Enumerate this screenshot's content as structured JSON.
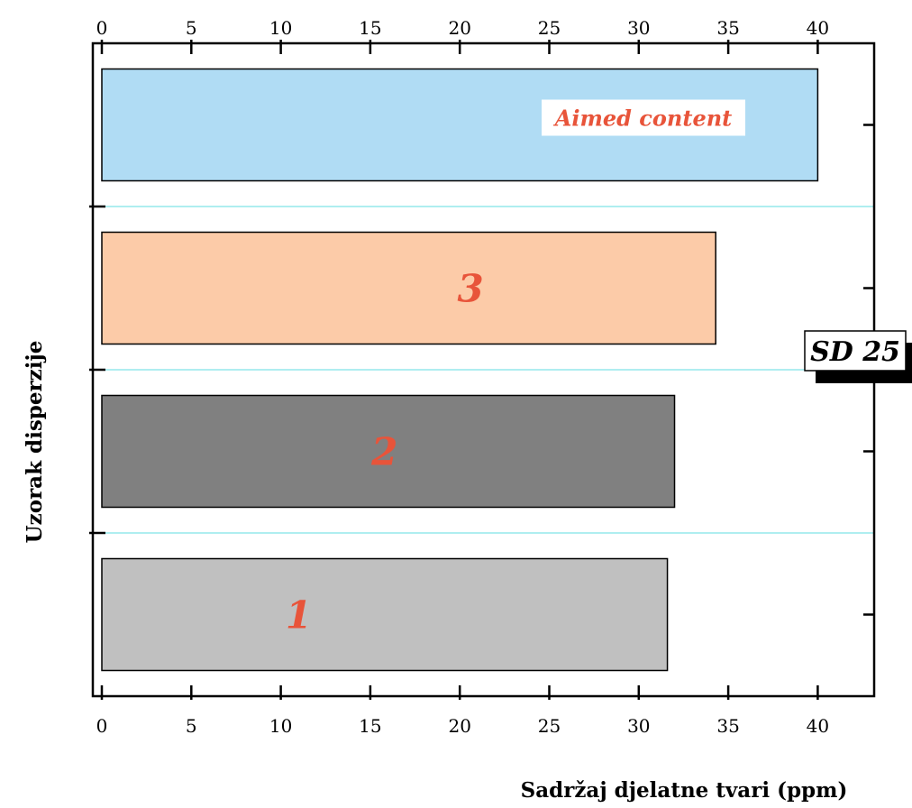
{
  "chart_data": {
    "type": "bar",
    "orientation": "horizontal",
    "categories": [
      "1",
      "2",
      "3",
      "Aimed content"
    ],
    "values": [
      31.6,
      32.0,
      34.3,
      40.0
    ],
    "bar_colors": [
      "#c0c0c0",
      "#808080",
      "#fccba8",
      "#b0dcf4"
    ],
    "bar_labels": [
      "1",
      "2",
      "3",
      "Aimed content"
    ],
    "xlabel": "Sadržaj djelatne tvari (ppm)",
    "ylabel": "Uzorak disperzije",
    "xlim": [
      0,
      43
    ],
    "xticks": [
      0,
      5,
      10,
      15,
      20,
      25,
      30,
      35,
      40
    ],
    "annotation": "SD 25",
    "separator_color": "#7fe3e6",
    "label_color": "#e8543a"
  }
}
